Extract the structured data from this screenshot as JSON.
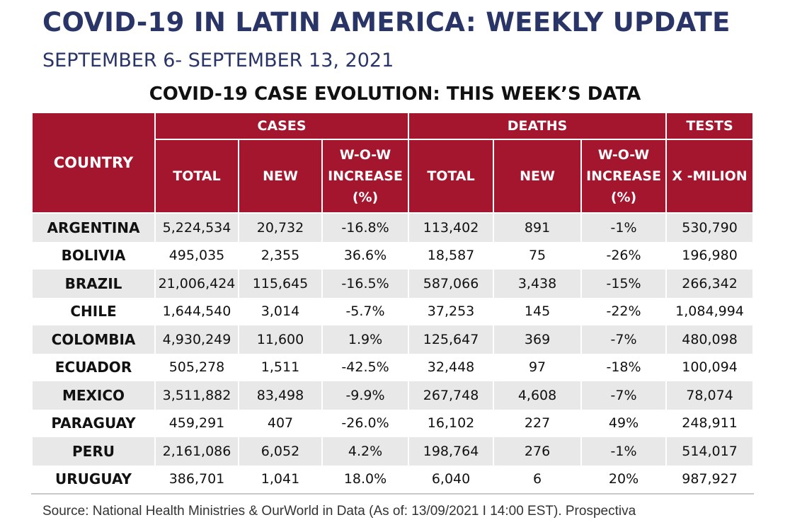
{
  "header": {
    "title": "COVID-19 IN LATIN AMERICA: WEEKLY UPDATE",
    "subtitle": "SEPTEMBER 6- SEPTEMBER 13, 2021",
    "table_title": "COVID-19 CASE EVOLUTION: THIS WEEK’S DATA"
  },
  "table": {
    "groups": {
      "country": "COUNTRY",
      "cases": "CASES",
      "deaths": "DEATHS",
      "tests": "TESTS"
    },
    "columns": {
      "cases_total": "TOTAL",
      "cases_new": "NEW",
      "cases_wow_l1": "W-O-W",
      "cases_wow_l2": "INCREASE",
      "cases_wow_l3": "(%)",
      "deaths_total": "TOTAL",
      "deaths_new": "NEW",
      "deaths_wow_l1": "W-O-W",
      "deaths_wow_l2": "INCREASE",
      "deaths_wow_l3": "(%)",
      "tests": "X -MILION"
    },
    "rows": [
      {
        "country": "ARGENTINA",
        "cases_total": "5,224,534",
        "cases_new": "20,732",
        "cases_wow": "-16.8%",
        "deaths_total": "113,402",
        "deaths_new": "891",
        "deaths_wow": "-1%",
        "tests": "530,790"
      },
      {
        "country": "BOLIVIA",
        "cases_total": "495,035",
        "cases_new": "2,355",
        "cases_wow": "36.6%",
        "deaths_total": "18,587",
        "deaths_new": "75",
        "deaths_wow": "-26%",
        "tests": "196,980"
      },
      {
        "country": "BRAZIL",
        "cases_total": "21,006,424",
        "cases_new": "115,645",
        "cases_wow": "-16.5%",
        "deaths_total": "587,066",
        "deaths_new": "3,438",
        "deaths_wow": "-15%",
        "tests": "266,342"
      },
      {
        "country": "CHILE",
        "cases_total": "1,644,540",
        "cases_new": "3,014",
        "cases_wow": "-5.7%",
        "deaths_total": "37,253",
        "deaths_new": "145",
        "deaths_wow": "-22%",
        "tests": "1,084,994"
      },
      {
        "country": "COLOMBIA",
        "cases_total": "4,930,249",
        "cases_new": "11,600",
        "cases_wow": "1.9%",
        "deaths_total": "125,647",
        "deaths_new": "369",
        "deaths_wow": "-7%",
        "tests": "480,098"
      },
      {
        "country": "ECUADOR",
        "cases_total": "505,278",
        "cases_new": "1,511",
        "cases_wow": "-42.5%",
        "deaths_total": "32,448",
        "deaths_new": "97",
        "deaths_wow": "-18%",
        "tests": "100,094"
      },
      {
        "country": "MEXICO",
        "cases_total": "3,511,882",
        "cases_new": "83,498",
        "cases_wow": "-9.9%",
        "deaths_total": "267,748",
        "deaths_new": "4,608",
        "deaths_wow": "-7%",
        "tests": "78,074"
      },
      {
        "country": "PARAGUAY",
        "cases_total": "459,291",
        "cases_new": "407",
        "cases_wow": "-26.0%",
        "deaths_total": "16,102",
        "deaths_new": "227",
        "deaths_wow": "49%",
        "tests": "248,911"
      },
      {
        "country": "PERU",
        "cases_total": "2,161,086",
        "cases_new": "6,052",
        "cases_wow": "4.2%",
        "deaths_total": "198,764",
        "deaths_new": "276",
        "deaths_wow": "-1%",
        "tests": "514,017"
      },
      {
        "country": "URUGUAY",
        "cases_total": "386,701",
        "cases_new": "1,041",
        "cases_wow": "18.0%",
        "deaths_total": "6,040",
        "deaths_new": "6",
        "deaths_wow": "20%",
        "tests": "987,927"
      }
    ]
  },
  "footer": {
    "source": "Source: National Health Ministries & OurWorld in Data (As of: 13/09/2021 I 14:00 EST). Prospectiva"
  },
  "colors": {
    "header_bg": "#a3162e",
    "title": "#2a3567",
    "row_shade": "#e8e8e8"
  }
}
